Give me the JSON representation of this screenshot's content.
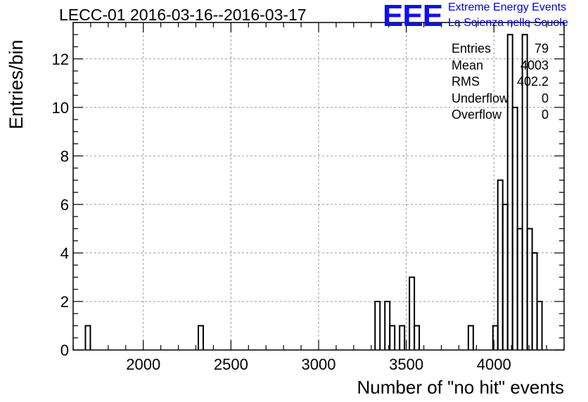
{
  "title": "LECC-01 2016-03-16--2016-03-17",
  "logo": {
    "mark": "EEE",
    "line1": "Extreme Energy Events",
    "line2": "La Scienza nelle Scuole",
    "color": "#0000ee"
  },
  "stats": [
    {
      "label": "Entries",
      "value": "79"
    },
    {
      "label": "Mean",
      "value": "4003"
    },
    {
      "label": "RMS",
      "value": "402.2"
    },
    {
      "label": "Underflow",
      "value": "0"
    },
    {
      "label": "Overflow",
      "value": "0"
    }
  ],
  "chart_data": {
    "type": "bar",
    "style": "step-histogram",
    "title": "LECC-01 2016-03-16--2016-03-17",
    "xlabel": "Number of \"no hit\" events",
    "ylabel": "Entries/bin",
    "xlim": [
      1600,
      4400
    ],
    "ylim": [
      0,
      13.5
    ],
    "bin_width": 28,
    "grid": true,
    "x_ticks": [
      2000,
      2500,
      3000,
      3500,
      4000
    ],
    "y_ticks": [
      0,
      2,
      4,
      6,
      8,
      10,
      12
    ],
    "bins": [
      {
        "x_low": 1670,
        "count": 1
      },
      {
        "x_low": 2314,
        "count": 1
      },
      {
        "x_low": 3322,
        "count": 2
      },
      {
        "x_low": 3378,
        "count": 2
      },
      {
        "x_low": 3406,
        "count": 1
      },
      {
        "x_low": 3462,
        "count": 1
      },
      {
        "x_low": 3518,
        "count": 3
      },
      {
        "x_low": 3546,
        "count": 1
      },
      {
        "x_low": 3854,
        "count": 1
      },
      {
        "x_low": 3994,
        "count": 1
      },
      {
        "x_low": 4022,
        "count": 7
      },
      {
        "x_low": 4050,
        "count": 6
      },
      {
        "x_low": 4078,
        "count": 13
      },
      {
        "x_low": 4106,
        "count": 10
      },
      {
        "x_low": 4134,
        "count": 5
      },
      {
        "x_low": 4162,
        "count": 13
      },
      {
        "x_low": 4190,
        "count": 5
      },
      {
        "x_low": 4218,
        "count": 4
      },
      {
        "x_low": 4246,
        "count": 2
      }
    ]
  }
}
